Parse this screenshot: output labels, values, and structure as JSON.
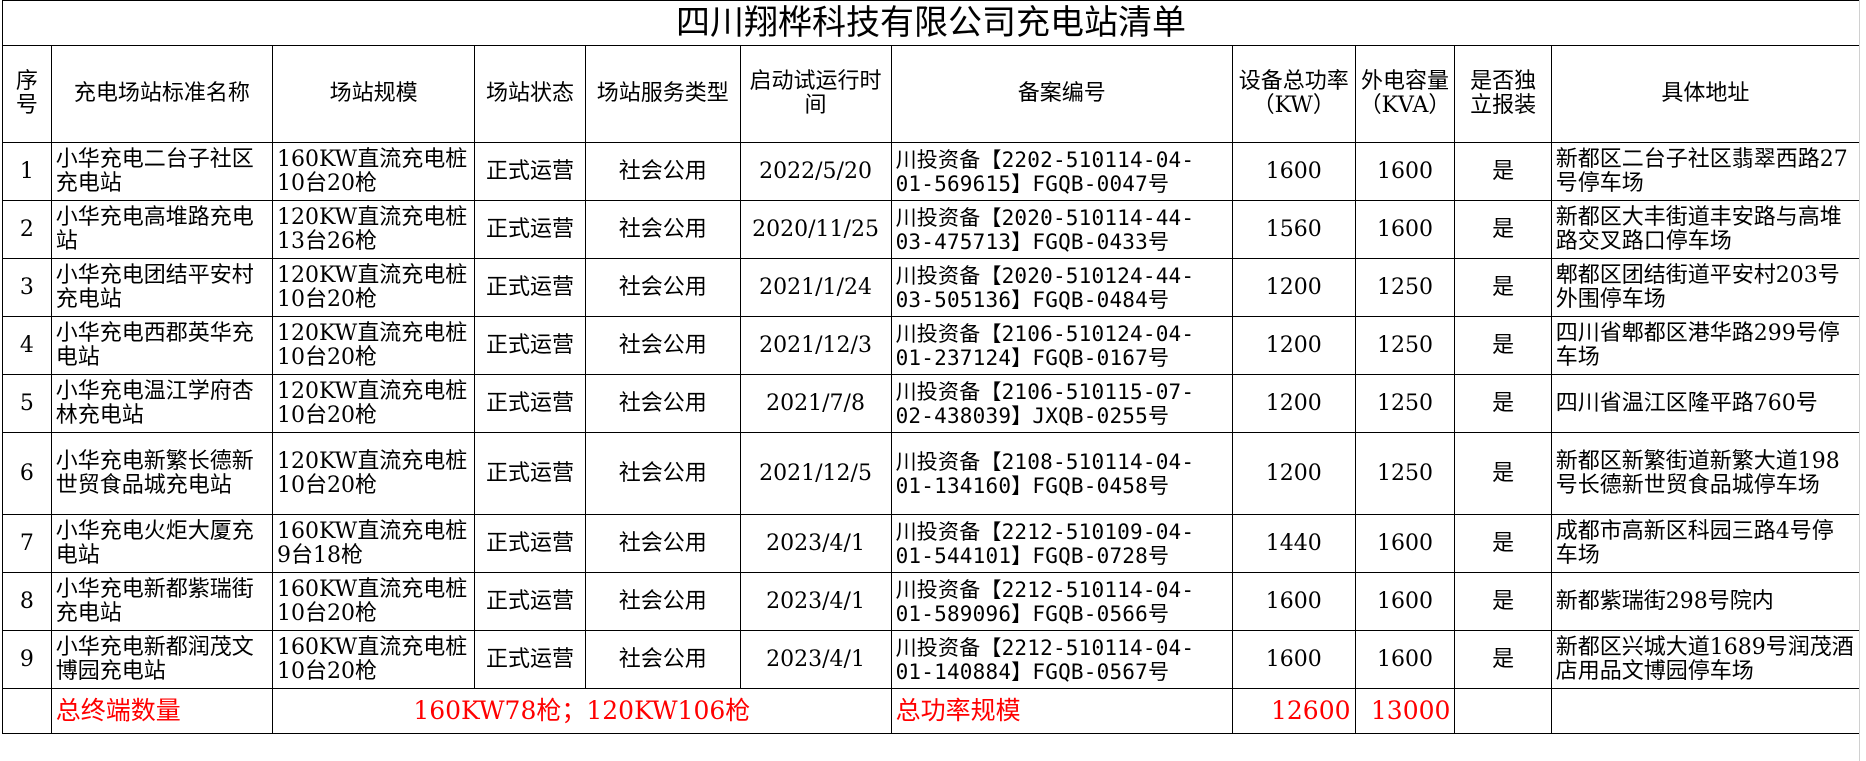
{
  "title": "四川翔桦科技有限公司充电站清单",
  "headers": {
    "seq": "序号",
    "name": "充电场站标准名称",
    "scale": "场站规模",
    "status": "场站状态",
    "service": "场站服务类型",
    "start": "启动试运行时间",
    "record": "备案编号",
    "power": "设备总功率（KW）",
    "capacity": "外电容量（KVA）",
    "independent": "是否独立报装",
    "address": "具体地址"
  },
  "rows": [
    {
      "seq": "1",
      "name": "小华充电二台子社区充电站",
      "scale": "160KW直流充电桩10台20枪",
      "status": "正式运营",
      "service": "社会公用",
      "start": "2022/5/20",
      "record": "川投资备【2202-510114-04-01-569615】FGQB-0047号",
      "power": "1600",
      "capacity": "1600",
      "independent": "是",
      "address": "新都区二台子社区翡翠西路27号停车场"
    },
    {
      "seq": "2",
      "name": "小华充电高堆路充电站",
      "scale": "120KW直流充电桩13台26枪",
      "status": "正式运营",
      "service": "社会公用",
      "start": "2020/11/25",
      "record": "川投资备【2020-510114-44-03-475713】FGQB-0433号",
      "power": "1560",
      "capacity": "1600",
      "independent": "是",
      "address": "新都区大丰街道丰安路与高堆路交叉路口停车场"
    },
    {
      "seq": "3",
      "name": "小华充电团结平安村充电站",
      "scale": "120KW直流充电桩10台20枪",
      "status": "正式运营",
      "service": "社会公用",
      "start": "2021/1/24",
      "record": "川投资备【2020-510124-44-03-505136】FGQB-0484号",
      "power": "1200",
      "capacity": "1250",
      "independent": "是",
      "address": "郫都区团结街道平安村203号外围停车场"
    },
    {
      "seq": "4",
      "name": "小华充电西郡英华充电站",
      "scale": "120KW直流充电桩10台20枪",
      "status": "正式运营",
      "service": "社会公用",
      "start": "2021/12/3",
      "record": "川投资备【2106-510124-04-01-237124】FGQB-0167号",
      "power": "1200",
      "capacity": "1250",
      "independent": "是",
      "address": "四川省郫都区港华路299号停车场"
    },
    {
      "seq": "5",
      "name": "小华充电温江学府杏林充电站",
      "scale": "120KW直流充电桩10台20枪",
      "status": "正式运营",
      "service": "社会公用",
      "start": "2021/7/8",
      "record": "川投资备【2106-510115-07-02-438039】JXQB-0255号",
      "power": "1200",
      "capacity": "1250",
      "independent": "是",
      "address": "四川省温江区隆平路760号"
    },
    {
      "seq": "6",
      "name": "小华充电新繁长德新世贸食品城充电站",
      "scale": "120KW直流充电桩10台20枪",
      "status": "正式运营",
      "service": "社会公用",
      "start": "2021/12/5",
      "record": "川投资备【2108-510114-04-01-134160】FGQB-0458号",
      "power": "1200",
      "capacity": "1250",
      "independent": "是",
      "address": "新都区新繁街道新繁大道198号长德新世贸食品城停车场"
    },
    {
      "seq": "7",
      "name": "小华充电火炬大厦充电站",
      "scale": "160KW直流充电桩9台18枪",
      "status": "正式运营",
      "service": "社会公用",
      "start": "2023/4/1",
      "record": "川投资备【2212-510109-04-01-544101】FGQB-0728号",
      "power": "1440",
      "capacity": "1600",
      "independent": "是",
      "address": "成都市高新区科园三路4号停车场"
    },
    {
      "seq": "8",
      "name": "小华充电新都紫瑞街充电站",
      "scale": "160KW直流充电桩10台20枪",
      "status": "正式运营",
      "service": "社会公用",
      "start": "2023/4/1",
      "record": "川投资备【2212-510114-04-01-589096】FGQB-0566号",
      "power": "1600",
      "capacity": "1600",
      "independent": "是",
      "address": "新都紫瑞街298号院内"
    },
    {
      "seq": "9",
      "name": "小华充电新都润茂文博园充电站",
      "scale": "160KW直流充电桩10台20枪",
      "status": "正式运营",
      "service": "社会公用",
      "start": "2023/4/1",
      "record": "川投资备【2212-510114-04-01-140884】FGQB-0567号",
      "power": "1600",
      "capacity": "1600",
      "independent": "是",
      "address": "新都区兴城大道1689号润茂酒店用品文博园停车场"
    }
  ],
  "footer": {
    "terminal_label": "总终端数量",
    "terminal_value": "160KW78枪；120KW106枪",
    "power_label": "总功率规模",
    "power_total": "12600",
    "capacity_total": "13000"
  }
}
